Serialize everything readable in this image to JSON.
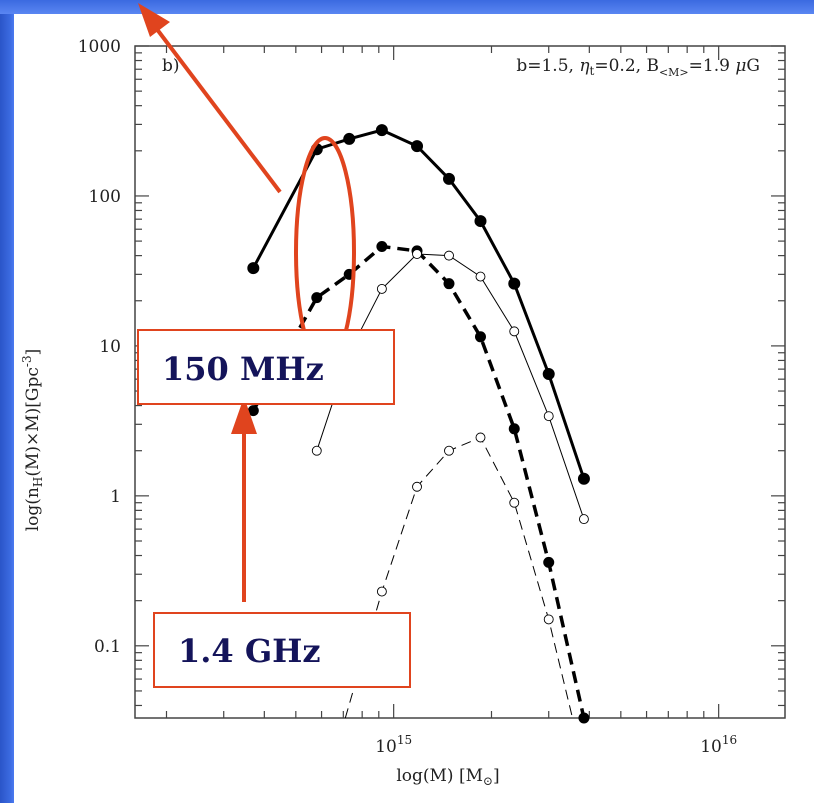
{
  "chart_data": {
    "type": "line",
    "panel_label": "b)",
    "parameters_text": "b=1.5, η_t=0.2, B_<M>=1.9 μG",
    "xlabel": "log(M)  [M_⊙]",
    "ylabel": "log(n_H(M)×M)[Gpc^-3]",
    "x_scale": "log",
    "y_scale": "log",
    "xlim": [
      160000000000000.0,
      1.6e+16
    ],
    "ylim": [
      0.033,
      1000
    ],
    "x_tick_labels": [
      {
        "value": 1000000000000000.0,
        "label": "10^15"
      },
      {
        "value": 1e+16,
        "label": "10^16"
      }
    ],
    "y_tick_labels": [
      {
        "value": 1000,
        "label": "1000"
      },
      {
        "value": 100,
        "label": "100"
      },
      {
        "value": 10,
        "label": "10"
      },
      {
        "value": 1,
        "label": "1"
      },
      {
        "value": 0.1,
        "label": "0.1"
      }
    ],
    "series": [
      {
        "style": "thick-solid-filled",
        "x": [
          370000000000000.0,
          580000000000000.0,
          730000000000000.0,
          920000000000000.0,
          1180000000000000.0,
          1480000000000000.0,
          1850000000000000.0,
          2350000000000000.0,
          3000000000000000.0,
          3850000000000000.0
        ],
        "y": [
          33,
          205,
          240,
          275,
          215,
          130,
          68,
          26,
          6.5,
          1.3
        ]
      },
      {
        "style": "thick-dashed-filled",
        "x": [
          370000000000000.0,
          580000000000000.0,
          730000000000000.0,
          920000000000000.0,
          1180000000000000.0,
          1480000000000000.0,
          1850000000000000.0,
          2350000000000000.0,
          3000000000000000.0,
          3850000000000000.0
        ],
        "y": [
          3.7,
          21,
          30,
          46,
          43,
          26,
          11.5,
          2.8,
          0.36,
          0.033
        ]
      },
      {
        "style": "thin-solid-open",
        "x": [
          580000000000000.0,
          730000000000000.0,
          920000000000000.0,
          1180000000000000.0,
          1480000000000000.0,
          1850000000000000.0,
          2350000000000000.0,
          3000000000000000.0,
          3850000000000000.0
        ],
        "y": [
          2.0,
          9.0,
          24,
          41,
          40,
          29,
          12.5,
          3.4,
          0.7
        ]
      },
      {
        "style": "thin-dashed-open",
        "x": [
          710000000000000.0,
          920000000000000.0,
          1180000000000000.0,
          1480000000000000.0,
          1850000000000000.0,
          2350000000000000.0,
          3000000000000000.0,
          3550000000000000.0
        ],
        "y": [
          0.033,
          0.23,
          1.15,
          2.0,
          2.45,
          0.9,
          0.15,
          0.033
        ]
      }
    ],
    "annotations": [
      {
        "text": "150 MHz",
        "color": "#14145a",
        "box_color": "#e0441e"
      },
      {
        "text": "1.4 GHz",
        "color": "#14145a",
        "box_color": "#e0441e"
      }
    ],
    "accent_color": "#e0441e",
    "legend": "none",
    "grid": false
  }
}
